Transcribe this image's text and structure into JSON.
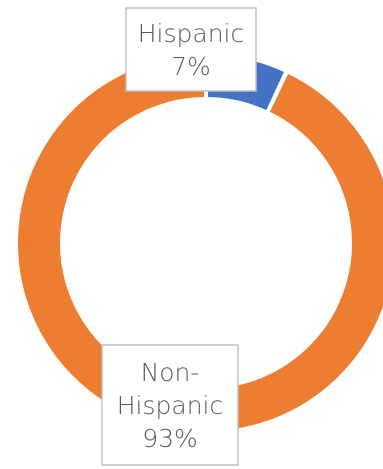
{
  "chart_data": {
    "type": "pie",
    "variant": "doughnut",
    "categories": [
      "Hispanic",
      "Non-Hispanic"
    ],
    "values": [
      7,
      93
    ],
    "data_labels": [
      {
        "category": "Hispanic",
        "lines": [
          "Hispanic",
          "7%"
        ]
      },
      {
        "category": "Non-Hispanic",
        "lines": [
          "Non-",
          "Hispanic",
          "93%"
        ]
      }
    ],
    "colors": [
      "#4472c4",
      "#ed7d31"
    ],
    "title": "",
    "legend": "none"
  }
}
